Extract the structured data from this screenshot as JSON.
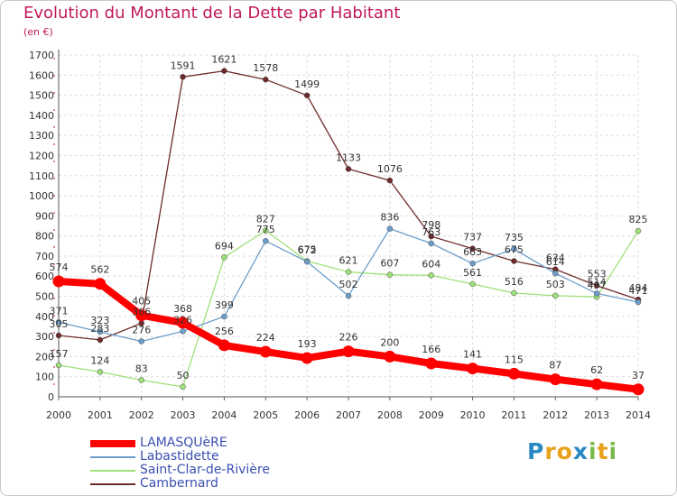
{
  "header": {
    "title": "Evolution du Montant de la Dette par Habitant",
    "unit_note": "(en €)"
  },
  "logo": {
    "letters": [
      "P",
      "r",
      "o",
      "x",
      "i",
      "t",
      "i"
    ],
    "colors": [
      "#2a8ac4",
      "#e9a21c",
      "#e9a21c",
      "#2a8ac4",
      "#79b94a",
      "#e9a21c",
      "#79b94a"
    ]
  },
  "chart_data": {
    "type": "line",
    "title": "Evolution du Montant de la Dette par Habitant",
    "ylabel": "(en €)",
    "xlabel": "",
    "x": [
      "2000",
      "2001",
      "2002",
      "2003",
      "2004",
      "2005",
      "2006",
      "2007",
      "2008",
      "2009",
      "2010",
      "2011",
      "2012",
      "2013",
      "2014"
    ],
    "ylim": [
      0,
      1700
    ],
    "yticks": [
      0,
      100,
      200,
      300,
      400,
      500,
      600,
      700,
      800,
      900,
      1000,
      1100,
      1200,
      1300,
      1400,
      1500,
      1600,
      1700
    ],
    "grid": true,
    "legend_position": "bottom-left",
    "series": [
      {
        "name": "LAMASQUèRE",
        "color": "#ff0000",
        "values": [
          574,
          562,
          405,
          368,
          256,
          224,
          193,
          226,
          200,
          166,
          141,
          115,
          87,
          62,
          37
        ]
      },
      {
        "name": "Labastidette",
        "color": "#6d9ecb",
        "values": [
          371,
          323,
          276,
          326,
          399,
          775,
          672,
          502,
          836,
          763,
          663,
          735,
          614,
          514,
          471
        ]
      },
      {
        "name": "Saint-Clar-de-Rivière",
        "color": "#9ee07a",
        "values": [
          157,
          124,
          83,
          50,
          694,
          827,
          675,
          621,
          607,
          604,
          561,
          516,
          503,
          497,
          825
        ]
      },
      {
        "name": "Cambernard",
        "color": "#6e2a2a",
        "values": [
          305,
          283,
          366,
          1591,
          1621,
          1578,
          1499,
          1133,
          1076,
          798,
          737,
          675,
          634,
          553,
          484
        ]
      }
    ]
  }
}
